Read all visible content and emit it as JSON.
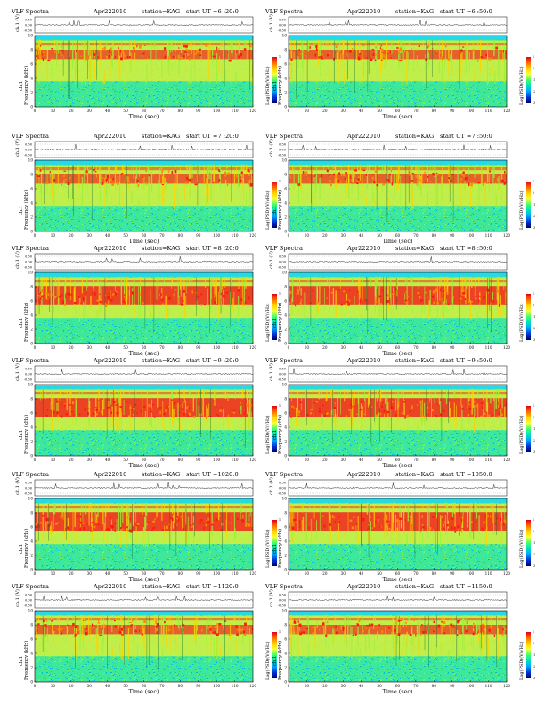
{
  "page": {
    "legend": {
      "ticks": [
        "1",
        "0",
        "-1",
        "-2",
        "-3"
      ],
      "colors": [
        "#e0001e",
        "#ff6a00",
        "#ffd200",
        "#f6ff3c",
        "#3cff6a",
        "#00e0c8",
        "#00a0ff",
        "#0030d0",
        "#000070"
      ]
    }
  },
  "chart_data": [
    {
      "type": "heatmap",
      "header": {
        "left": "VLF Spectra",
        "date": "Apr222010",
        "station": "station=KAG",
        "start": "start  UT  =6 :20:0"
      },
      "ch_label": "ch.1 (V)",
      "channel": "ch.1",
      "ylabel": "Frequency  (kHz)",
      "xlabel": "Time  (sec)",
      "colorbar_label": "Log(PSD)(V/√Hz)",
      "xticks": [
        0,
        10,
        20,
        30,
        40,
        50,
        60,
        70,
        80,
        90,
        100,
        110,
        120
      ],
      "yticks": [
        0,
        2,
        4,
        6,
        8,
        10
      ],
      "xlim": [
        0,
        120
      ],
      "ylim": [
        0,
        10
      ],
      "trace_ticks": [
        "0.30",
        "0.00",
        "-0.30"
      ],
      "band": "moderate"
    },
    {
      "type": "heatmap",
      "header": {
        "left": "VLF Spectra",
        "date": "Apr222010",
        "station": "station=KAG",
        "start": "start  UT  =6 :50:0"
      },
      "ch_label": "ch.1 (V)",
      "channel": "ch.1",
      "ylabel": "Frequency  (kHz)",
      "xlabel": "Time  (sec)",
      "colorbar_label": "Log(PSD)(V/√Hz)",
      "xticks": [
        0,
        10,
        20,
        30,
        40,
        50,
        60,
        70,
        80,
        90,
        100,
        110,
        120
      ],
      "yticks": [
        0,
        2,
        4,
        6,
        8,
        10
      ],
      "xlim": [
        0,
        120
      ],
      "ylim": [
        0,
        10
      ],
      "trace_ticks": [
        "0.30",
        "0.00",
        "-0.30"
      ],
      "band": "moderate"
    },
    {
      "type": "heatmap",
      "header": {
        "left": "VLF Spectra",
        "date": "Apr222010",
        "station": "station=KAG",
        "start": "start  UT  =7 :20:0"
      },
      "ch_label": "ch.1 (V)",
      "channel": "ch.1",
      "ylabel": "Frequency  (kHz)",
      "xlabel": "Time  (sec)",
      "colorbar_label": "Log(PSD)(V/√Hz)",
      "xticks": [
        0,
        10,
        20,
        30,
        40,
        50,
        60,
        70,
        80,
        90,
        100,
        110,
        120
      ],
      "yticks": [
        0,
        2,
        4,
        6,
        8,
        10
      ],
      "xlim": [
        0,
        120
      ],
      "ylim": [
        0,
        10
      ],
      "trace_ticks": [
        "0.30",
        "0.00",
        "-0.30"
      ],
      "band": "moderate"
    },
    {
      "type": "heatmap",
      "header": {
        "left": "VLF Spectra",
        "date": "Apr222010",
        "station": "station=KAG",
        "start": "start  UT  =7 :50:0"
      },
      "ch_label": "ch.1 (V)",
      "channel": "ch.1",
      "ylabel": "Frequency  (kHz)",
      "xlabel": "Time  (sec)",
      "colorbar_label": "Log(PSD)(V/√Hz)",
      "xticks": [
        0,
        10,
        20,
        30,
        40,
        50,
        60,
        70,
        80,
        90,
        100,
        110,
        120
      ],
      "yticks": [
        0,
        2,
        4,
        6,
        8,
        10
      ],
      "xlim": [
        0,
        120
      ],
      "ylim": [
        0,
        10
      ],
      "trace_ticks": [
        "0.30",
        "0.00",
        "-0.30"
      ],
      "band": "moderate"
    },
    {
      "type": "heatmap",
      "header": {
        "left": "VLF Spectra",
        "date": "Apr222010",
        "station": "station=KAG",
        "start": "start  UT  =8 :20:0"
      },
      "ch_label": "ch.1 (V)",
      "channel": "ch.1",
      "ylabel": "Frequency  (kHz)",
      "xlabel": "Time  (sec)",
      "colorbar_label": "Log(PSD)(V/√Hz)",
      "xticks": [
        0,
        10,
        20,
        30,
        40,
        50,
        60,
        70,
        80,
        90,
        100,
        110,
        120
      ],
      "yticks": [
        0,
        2,
        4,
        6,
        8,
        10
      ],
      "xlim": [
        0,
        120
      ],
      "ylim": [
        0,
        10
      ],
      "trace_ticks": [
        "0.30",
        "0.00",
        "-0.30"
      ],
      "band": "strong"
    },
    {
      "type": "heatmap",
      "header": {
        "left": "VLF Spectra",
        "date": "Apr222010",
        "station": "station=KAG",
        "start": "start  UT  =8 :50:0"
      },
      "ch_label": "ch.1 (V)",
      "channel": "ch.1",
      "ylabel": "Frequency  (kHz)",
      "xlabel": "Time  (sec)",
      "colorbar_label": "Log(PSD)(V/√Hz)",
      "xticks": [
        0,
        10,
        20,
        30,
        40,
        50,
        60,
        70,
        80,
        90,
        100,
        110,
        120
      ],
      "yticks": [
        0,
        2,
        4,
        6,
        8,
        10
      ],
      "xlim": [
        0,
        120
      ],
      "ylim": [
        0,
        10
      ],
      "trace_ticks": [
        "0.30",
        "0.00",
        "-0.30"
      ],
      "band": "strong"
    },
    {
      "type": "heatmap",
      "header": {
        "left": "VLF Spectra",
        "date": "Apr222010",
        "station": "station=KAG",
        "start": "start  UT  =9 :20:0"
      },
      "ch_label": "ch.1 (V)",
      "channel": "ch.1",
      "ylabel": "Frequency  (kHz)",
      "xlabel": "Time  (sec)",
      "colorbar_label": "Log(PSD)(V/√Hz)",
      "xticks": [
        0,
        10,
        20,
        30,
        40,
        50,
        60,
        70,
        80,
        90,
        100,
        110,
        120
      ],
      "yticks": [
        0,
        2,
        4,
        6,
        8,
        10
      ],
      "xlim": [
        0,
        120
      ],
      "ylim": [
        0,
        10
      ],
      "trace_ticks": [
        "0.30",
        "0.00",
        "-0.30"
      ],
      "band": "strong"
    },
    {
      "type": "heatmap",
      "header": {
        "left": "VLF Spectra",
        "date": "Apr222010",
        "station": "station=KAG",
        "start": "start  UT  =9 :50:0"
      },
      "ch_label": "ch.1 (V)",
      "channel": "ch.1",
      "ylabel": "Frequency  (kHz)",
      "xlabel": "Time  (sec)",
      "colorbar_label": "Log(PSD)(V/√Hz)",
      "xticks": [
        0,
        10,
        20,
        30,
        40,
        50,
        60,
        70,
        80,
        90,
        100,
        110,
        120
      ],
      "yticks": [
        0,
        2,
        4,
        6,
        8,
        10
      ],
      "xlim": [
        0,
        120
      ],
      "ylim": [
        0,
        10
      ],
      "trace_ticks": [
        "0.30",
        "0.00",
        "-0.30"
      ],
      "band": "strong"
    },
    {
      "type": "heatmap",
      "header": {
        "left": "VLF Spectra",
        "date": "Apr222010",
        "station": "station=KAG",
        "start": "start  UT  =1020:0"
      },
      "ch_label": "ch.1 (V)",
      "channel": "ch.1",
      "ylabel": "Frequency  (kHz)",
      "xlabel": "Time  (sec)",
      "colorbar_label": "Log(PSD)(V/√Hz)",
      "xticks": [
        0,
        10,
        20,
        30,
        40,
        50,
        60,
        70,
        80,
        90,
        100,
        110,
        120
      ],
      "yticks": [
        0,
        2,
        4,
        6,
        8,
        10
      ],
      "xlim": [
        0,
        120
      ],
      "ylim": [
        0,
        10
      ],
      "trace_ticks": [
        "0.30",
        "0.00",
        "-0.30"
      ],
      "band": "strong"
    },
    {
      "type": "heatmap",
      "header": {
        "left": "VLF Spectra",
        "date": "Apr222010",
        "station": "station=KAG",
        "start": "start  UT  =1050:0"
      },
      "ch_label": "ch.1 (V)",
      "channel": "ch.1",
      "ylabel": "Frequency  (kHz)",
      "xlabel": "Time  (sec)",
      "colorbar_label": "Log(PSD)(V/√Hz)",
      "xticks": [
        0,
        10,
        20,
        30,
        40,
        50,
        60,
        70,
        80,
        90,
        100,
        110,
        120
      ],
      "yticks": [
        0,
        2,
        4,
        6,
        8,
        10
      ],
      "xlim": [
        0,
        120
      ],
      "ylim": [
        0,
        10
      ],
      "trace_ticks": [
        "0.30",
        "0.00",
        "-0.30"
      ],
      "band": "strong"
    },
    {
      "type": "heatmap",
      "header": {
        "left": "VLF Spectra",
        "date": "Apr222010",
        "station": "station=KAG",
        "start": "start  UT  =1120:0"
      },
      "ch_label": "ch.1 (V)",
      "channel": "ch.1",
      "ylabel": "Frequency  (kHz)",
      "xlabel": "Time  (sec)",
      "colorbar_label": "Log(PSD)(V/√Hz)",
      "xticks": [
        0,
        10,
        20,
        30,
        40,
        50,
        60,
        70,
        80,
        90,
        100,
        110,
        120
      ],
      "yticks": [
        0,
        2,
        4,
        6,
        8,
        10
      ],
      "xlim": [
        0,
        120
      ],
      "ylim": [
        0,
        10
      ],
      "trace_ticks": [
        "0.30",
        "0.00",
        "-0.30"
      ],
      "band": "moderate"
    },
    {
      "type": "heatmap",
      "header": {
        "left": "VLF Spectra",
        "date": "Apr222010",
        "station": "station=KAG",
        "start": "start  UT  =1150:0"
      },
      "ch_label": "ch.1 (V)",
      "channel": "ch.1",
      "ylabel": "Frequency  (kHz)",
      "xlabel": "Time  (sec)",
      "colorbar_label": "Log(PSD)(V/√Hz)",
      "xticks": [
        0,
        10,
        20,
        30,
        40,
        50,
        60,
        70,
        80,
        90,
        100,
        110,
        120
      ],
      "yticks": [
        0,
        2,
        4,
        6,
        8,
        10
      ],
      "xlim": [
        0,
        120
      ],
      "ylim": [
        0,
        10
      ],
      "trace_ticks": [
        "0.30",
        "0.00",
        "-0.30"
      ],
      "band": "moderate"
    }
  ]
}
